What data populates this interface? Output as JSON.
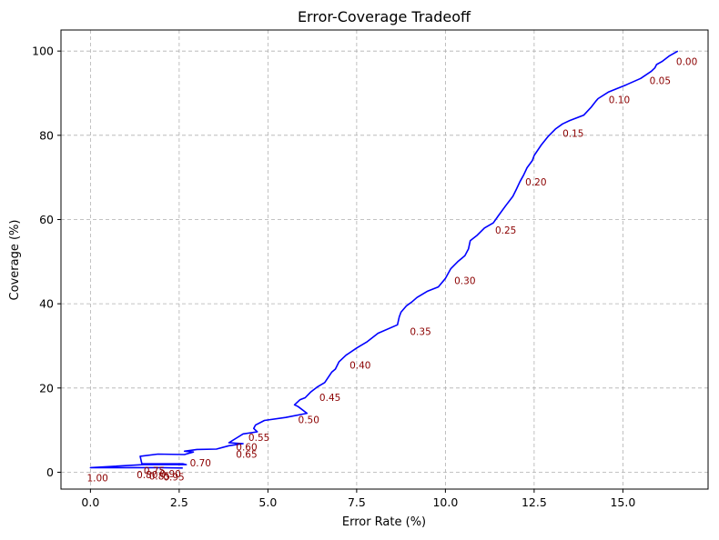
{
  "chart_data": {
    "type": "line",
    "title": "Error-Coverage Tradeoff",
    "xlabel": "Error Rate (%)",
    "ylabel": "Coverage (%)",
    "xlim": [
      -0.83,
      17.4
    ],
    "ylim": [
      -4,
      105
    ],
    "xticks": [
      0.0,
      2.5,
      5.0,
      7.5,
      10.0,
      12.5,
      15.0
    ],
    "xtick_labels": [
      "0.0",
      "2.5",
      "5.0",
      "7.5",
      "10.0",
      "12.5",
      "15.0"
    ],
    "yticks": [
      0,
      20,
      40,
      60,
      80,
      100
    ],
    "ytick_labels": [
      "0",
      "20",
      "40",
      "60",
      "80",
      "100"
    ],
    "grid": true,
    "line_color": "#0000ff",
    "annotation_color": "#8b0000",
    "series": [
      {
        "values_x": [
          16.55,
          16.3,
          16.1,
          15.95,
          15.9,
          15.8,
          15.5,
          15.1,
          14.6,
          14.3,
          14.25,
          14.1,
          13.9,
          13.5,
          13.3,
          13.1,
          12.9,
          12.7,
          12.5,
          12.45,
          12.3,
          12.2,
          12.1,
          12.0,
          11.9,
          11.7,
          11.5,
          11.35,
          11.1,
          10.9,
          10.7,
          10.65,
          10.55,
          10.35,
          10.15,
          10.0,
          9.8,
          9.5,
          9.2,
          9.05,
          8.9,
          8.75,
          8.7,
          8.65,
          8.1,
          7.8,
          7.5,
          7.2,
          7.0,
          6.9,
          6.8,
          6.6,
          6.4,
          6.2,
          6.05,
          5.9,
          5.75,
          5.85,
          6.1,
          5.5,
          4.9,
          4.65,
          4.6,
          4.7,
          4.3,
          4.15,
          3.9,
          4.3,
          3.9,
          3.55,
          3.0,
          2.65,
          2.9,
          2.65,
          1.9,
          1.4,
          1.45,
          2.6,
          2.7,
          1.5,
          0.0,
          1.0,
          2.0,
          2.6
        ],
        "values_y": [
          100.0,
          98.8,
          97.5,
          96.8,
          96.0,
          95.2,
          93.5,
          92.0,
          90.3,
          88.7,
          88.2,
          86.6,
          84.8,
          83.5,
          82.7,
          81.5,
          79.8,
          77.7,
          75.2,
          74.0,
          72.3,
          70.5,
          69.0,
          67.2,
          65.5,
          63.3,
          61.0,
          59.2,
          58.0,
          56.3,
          55.0,
          53.0,
          51.4,
          50.0,
          48.3,
          46.0,
          44.0,
          43.0,
          41.5,
          40.4,
          39.5,
          38.0,
          36.9,
          35.0,
          33.0,
          31.0,
          29.5,
          27.8,
          26.2,
          24.5,
          23.8,
          21.3,
          20.3,
          19.0,
          17.7,
          17.2,
          16.0,
          15.6,
          14.0,
          13.0,
          12.3,
          11.2,
          10.4,
          9.6,
          9.1,
          8.3,
          7.0,
          6.8,
          6.3,
          5.5,
          5.4,
          5.0,
          4.8,
          4.2,
          4.3,
          3.8,
          2.0,
          2.0,
          1.8,
          1.8,
          1.1,
          1.1,
          1.1,
          1.0
        ]
      }
    ],
    "annotations": [
      {
        "text": "0.00",
        "x": 16.5,
        "y": 97.5
      },
      {
        "text": "0.05",
        "x": 15.75,
        "y": 93.0
      },
      {
        "text": "0.10",
        "x": 14.6,
        "y": 88.5
      },
      {
        "text": "0.15",
        "x": 13.3,
        "y": 80.5
      },
      {
        "text": "0.20",
        "x": 12.25,
        "y": 69.0
      },
      {
        "text": "0.25",
        "x": 11.4,
        "y": 57.5
      },
      {
        "text": "0.30",
        "x": 10.25,
        "y": 45.5
      },
      {
        "text": "0.35",
        "x": 9.0,
        "y": 33.5
      },
      {
        "text": "0.40",
        "x": 7.3,
        "y": 25.5
      },
      {
        "text": "0.45",
        "x": 6.45,
        "y": 17.8
      },
      {
        "text": "0.50",
        "x": 5.85,
        "y": 12.5
      },
      {
        "text": "0.55",
        "x": 4.45,
        "y": 8.3
      },
      {
        "text": "0.60",
        "x": 4.1,
        "y": 6.0
      },
      {
        "text": "0.65",
        "x": 4.1,
        "y": 4.3
      },
      {
        "text": "0.70",
        "x": 2.8,
        "y": 2.3
      },
      {
        "text": "0.75",
        "x": 1.5,
        "y": 0.4
      },
      {
        "text": "0.80",
        "x": 1.3,
        "y": -0.6
      },
      {
        "text": "0.85",
        "x": 1.65,
        "y": -0.9
      },
      {
        "text": "0.90",
        "x": 1.95,
        "y": -0.3
      },
      {
        "text": "0.95",
        "x": 2.05,
        "y": -1.1
      },
      {
        "text": "1.00",
        "x": -0.1,
        "y": -1.3
      }
    ]
  }
}
